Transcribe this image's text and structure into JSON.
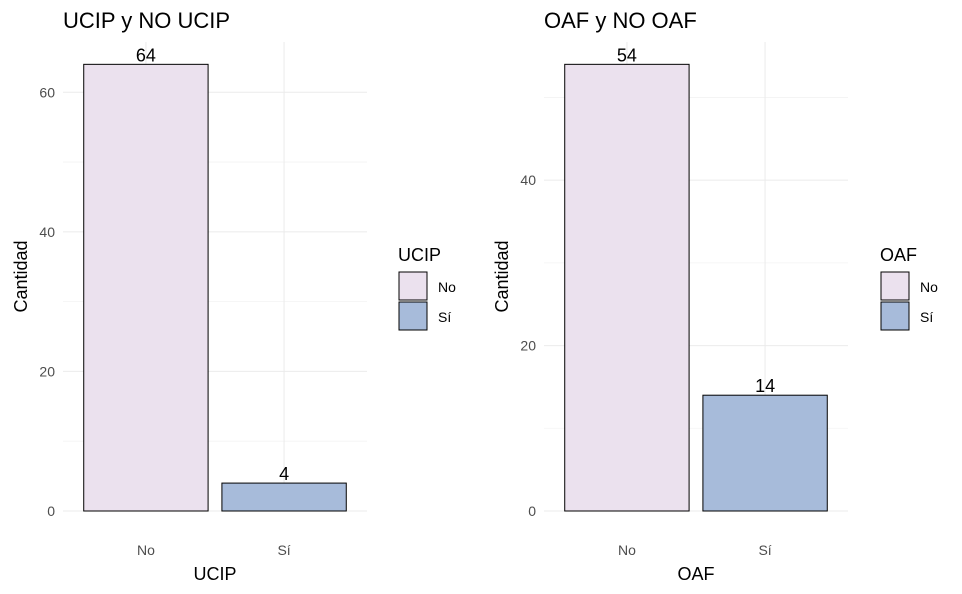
{
  "chart_data": [
    {
      "type": "bar",
      "title": "UCIP y NO UCIP",
      "xlabel": "UCIP",
      "ylabel": "Cantidad",
      "categories": [
        "No",
        "Sí"
      ],
      "values": [
        64,
        4
      ],
      "value_labels": [
        "64",
        "4"
      ],
      "colors": [
        "#ebe1ee",
        "#a7bbda"
      ],
      "ylim": [
        0,
        67.2
      ],
      "yticks": [
        0,
        20,
        40,
        60
      ],
      "ytick_labels": [
        "0",
        "20",
        "40",
        "60"
      ],
      "grid": true,
      "legend": {
        "title": "UCIP",
        "position": "right",
        "items": [
          {
            "label": "No",
            "color": "#ebe1ee"
          },
          {
            "label": "Sí",
            "color": "#a7bbda"
          }
        ]
      }
    },
    {
      "type": "bar",
      "title": "OAF y NO OAF",
      "xlabel": "OAF",
      "ylabel": "Cantidad",
      "categories": [
        "No",
        "Sí"
      ],
      "values": [
        54,
        14
      ],
      "value_labels": [
        "54",
        "14"
      ],
      "colors": [
        "#ebe1ee",
        "#a7bbda"
      ],
      "ylim": [
        0,
        56.7
      ],
      "yticks": [
        0,
        20,
        40
      ],
      "ytick_labels": [
        "0",
        "20",
        "40"
      ],
      "grid": true,
      "legend": {
        "title": "OAF",
        "position": "right",
        "items": [
          {
            "label": "No",
            "color": "#ebe1ee"
          },
          {
            "label": "Sí",
            "color": "#a7bbda"
          }
        ]
      }
    }
  ]
}
